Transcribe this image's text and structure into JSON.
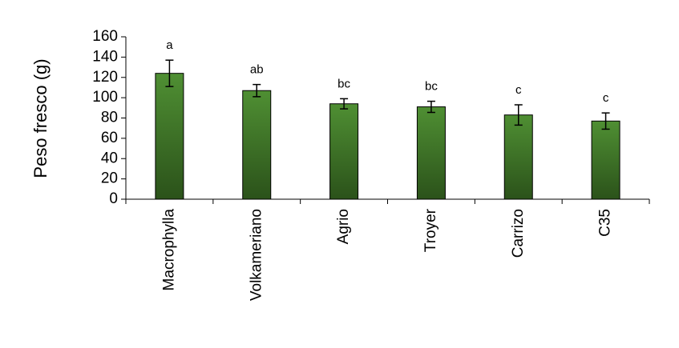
{
  "chart_data": {
    "type": "bar",
    "y_label": "Peso fresco (g)",
    "categories": [
      "Macrophylla",
      "Volkameriano",
      "Agrio",
      "Troyer",
      "Carrizo",
      "C35"
    ],
    "values": [
      124,
      107,
      94,
      91,
      83,
      77
    ],
    "errors": [
      13,
      6,
      5,
      5.5,
      10,
      8
    ],
    "annotations": [
      "a",
      "ab",
      "bc",
      "bc",
      "c",
      "c"
    ],
    "color": "#4f8f33",
    "ylim": [
      0,
      160
    ],
    "yticks": [
      0,
      20,
      40,
      60,
      80,
      100,
      120,
      140,
      160
    ],
    "grid": false
  }
}
